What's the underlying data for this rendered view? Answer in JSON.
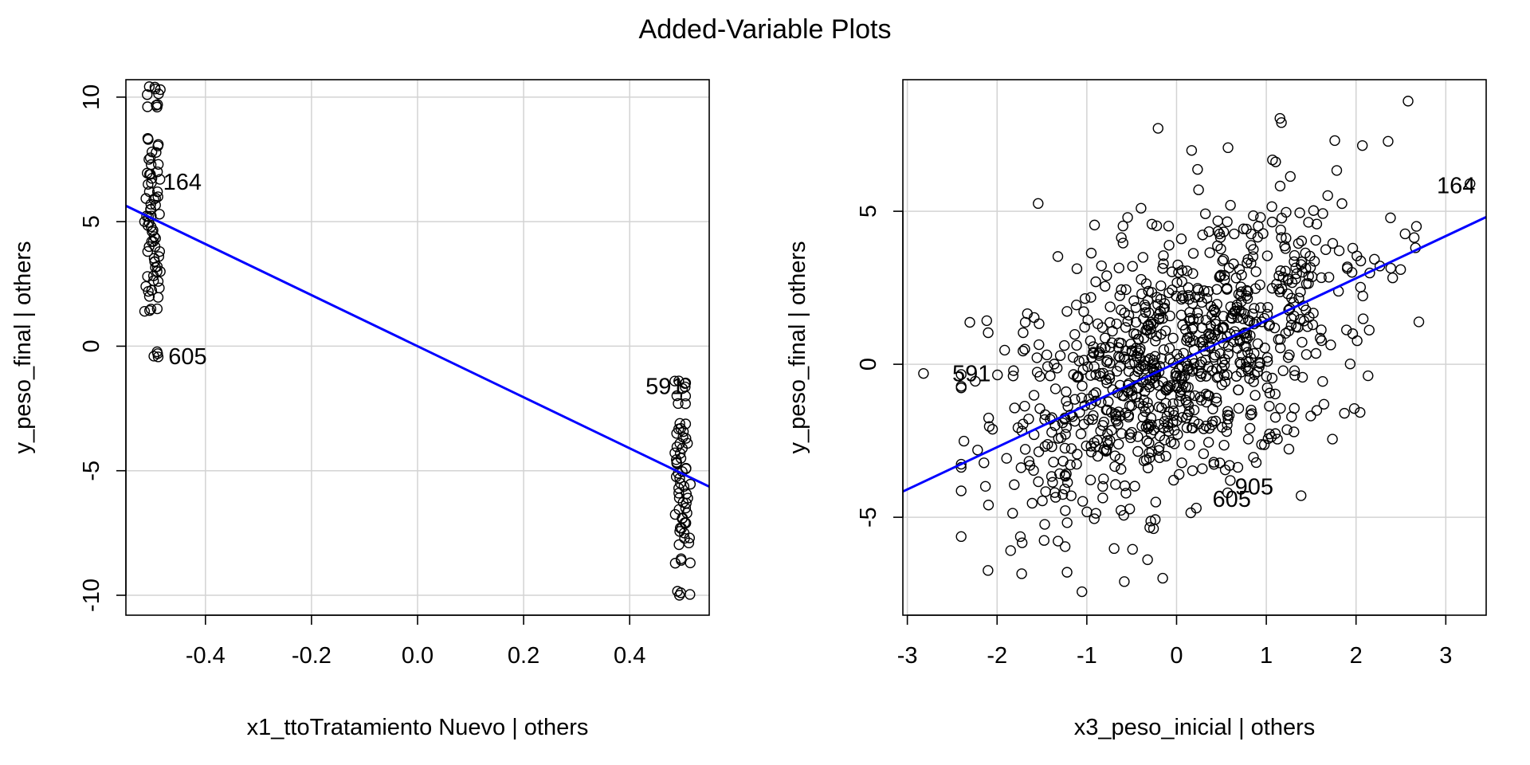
{
  "figure": {
    "title": "Added-Variable Plots"
  },
  "chart_data": [
    {
      "type": "scatter",
      "xlabel": "x1_ttoTratamiento Nuevo | others",
      "ylabel": "y_peso_final  | others",
      "xlim": [
        -0.55,
        0.55
      ],
      "ylim": [
        -10.8,
        10.7
      ],
      "xticks": [
        -0.4,
        -0.2,
        0.0,
        0.2,
        0.4
      ],
      "xtick_labels": [
        "-0.4",
        "-0.2",
        "0.0",
        "0.2",
        "0.4"
      ],
      "yticks": [
        -10,
        -5,
        0,
        5,
        10
      ],
      "ytick_labels": [
        "-10",
        "-5",
        "0",
        "5",
        "10"
      ],
      "grid": true,
      "fit_line": {
        "slope": -10.25,
        "intercept": 0.0,
        "color": "#0000ff"
      },
      "groups": [
        {
          "x_center": -0.5,
          "y_values": [
            10.4,
            10.3,
            10.1,
            9.7,
            9.6,
            8.3,
            8.1,
            7.8,
            7.5,
            7.3,
            7.0,
            6.9,
            6.7,
            6.5,
            6.2,
            6.0,
            5.9,
            5.7,
            5.5,
            5.3,
            5.2,
            5.0,
            4.8,
            4.6,
            4.4,
            4.2,
            4.0,
            3.8,
            3.6,
            3.4,
            3.2,
            3.0,
            2.8,
            2.6,
            2.4,
            2.2,
            2.0,
            1.5,
            1.4,
            -0.3,
            -0.4
          ]
        },
        {
          "x_center": 0.5,
          "y_values": [
            -1.4,
            -1.5,
            -1.7,
            -2.0,
            -2.3,
            -3.1,
            -3.3,
            -3.5,
            -3.7,
            -3.9,
            -4.1,
            -4.3,
            -4.5,
            -4.7,
            -4.9,
            -5.1,
            -5.3,
            -5.5,
            -5.7,
            -5.9,
            -6.1,
            -6.3,
            -6.5,
            -6.7,
            -6.9,
            -7.1,
            -7.3,
            -7.5,
            -7.7,
            -7.9,
            -8.6,
            -8.7,
            -9.9,
            -10.0
          ]
        }
      ],
      "annotations": [
        {
          "text": "164",
          "x": -0.48,
          "y": 6.6
        },
        {
          "text": "605",
          "x": -0.47,
          "y": -0.4
        },
        {
          "text": "591",
          "x": 0.43,
          "y": -1.6
        }
      ]
    },
    {
      "type": "scatter",
      "xlabel": "x3_peso_inicial | others",
      "ylabel": "y_peso_final  | others",
      "xlim": [
        -3.05,
        3.45
      ],
      "ylim": [
        -8.2,
        9.3
      ],
      "xticks": [
        -3,
        -2,
        -1,
        0,
        1,
        2,
        3
      ],
      "xtick_labels": [
        "-3",
        "-2",
        "-1",
        "0",
        "1",
        "2",
        "3"
      ],
      "yticks": [
        -5,
        0,
        5
      ],
      "ytick_labels": [
        "-5",
        "0",
        "5"
      ],
      "grid": true,
      "fit_line": {
        "slope": 1.38,
        "intercept": 0.05,
        "color": "#0000ff"
      },
      "n_points": 950,
      "cloud": {
        "x_sd": 1.0,
        "slope": 1.38,
        "residual_sd": 2.1
      },
      "highlight_points": [
        {
          "x": 3.27,
          "y": 5.9
        },
        {
          "x": 2.58,
          "y": 8.6
        },
        {
          "x": -2.82,
          "y": -0.3
        },
        {
          "x": 0.57,
          "y": -4.2
        },
        {
          "x": 0.22,
          "y": -4.7
        }
      ],
      "annotations": [
        {
          "text": "164",
          "x": 2.9,
          "y": 5.85
        },
        {
          "text": "591",
          "x": -2.5,
          "y": -0.3
        },
        {
          "text": "605",
          "x": 0.4,
          "y": -4.4
        },
        {
          "text": "905",
          "x": 0.65,
          "y": -4.0
        }
      ]
    }
  ]
}
